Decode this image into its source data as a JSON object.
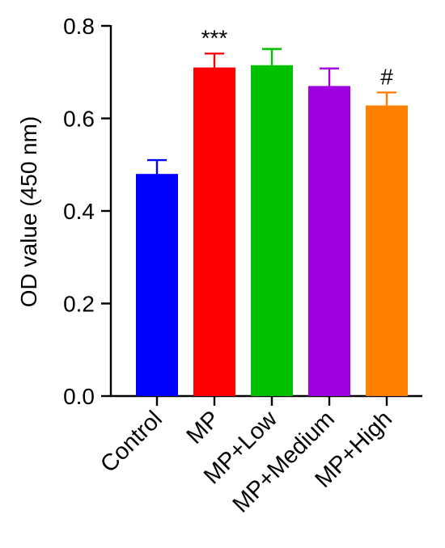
{
  "chart_data": {
    "type": "bar",
    "categories": [
      "Control",
      "MP",
      "MP+Low",
      "MP+Medium",
      "MP+High"
    ],
    "values": [
      0.48,
      0.71,
      0.715,
      0.67,
      0.628
    ],
    "errors": [
      0.03,
      0.03,
      0.035,
      0.038,
      0.028
    ],
    "annotations": [
      "",
      "***",
      "",
      "",
      "#"
    ],
    "colors": [
      "#0000ff",
      "#ff0000",
      "#00c000",
      "#a000e0",
      "#ff8000"
    ],
    "title": "",
    "xlabel": "",
    "ylabel": "OD value (450 nm)",
    "ylim": [
      0,
      0.8
    ],
    "yticks": [
      "0.0",
      "0.2",
      "0.4",
      "0.6",
      "0.8"
    ],
    "grid": false,
    "legend": "none"
  }
}
